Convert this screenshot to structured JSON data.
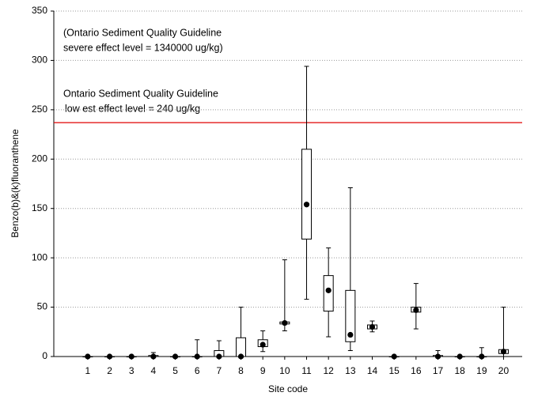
{
  "chart_data": {
    "type": "box",
    "x_label": "Site code",
    "y_label": "Benzo(b)&(k)fluoranthene",
    "categories": [
      "1",
      "2",
      "3",
      "4",
      "5",
      "6",
      "7",
      "8",
      "9",
      "10",
      "11",
      "12",
      "13",
      "14",
      "15",
      "16",
      "17",
      "18",
      "19",
      "20"
    ],
    "min": [
      0,
      0,
      0,
      0,
      0,
      0,
      0,
      0,
      5,
      26,
      58,
      20,
      6,
      25,
      0,
      28,
      0,
      0,
      0,
      0
    ],
    "q1": [
      0,
      0,
      0,
      0,
      0,
      0,
      0,
      0,
      10,
      33,
      119,
      46,
      15,
      28,
      0,
      45,
      0,
      0,
      0,
      3
    ],
    "median": [
      0,
      0,
      0,
      0,
      0,
      0,
      0,
      0,
      12,
      34,
      154,
      67,
      22,
      30,
      0,
      47,
      0,
      0,
      0,
      5
    ],
    "q3": [
      0,
      0,
      0,
      1,
      0,
      0,
      6,
      19,
      17,
      35,
      210,
      82,
      67,
      32,
      0,
      50,
      1,
      0,
      0,
      7
    ],
    "max": [
      0,
      0,
      0,
      4,
      0,
      17,
      16,
      50,
      26,
      98,
      294,
      110,
      171,
      36,
      0,
      74,
      6,
      0,
      9,
      50
    ],
    "ylim": [
      0,
      350
    ],
    "yticks": [
      0,
      50,
      100,
      150,
      200,
      250,
      300,
      350
    ],
    "grid": true,
    "reference_line": {
      "value": 237,
      "color": "#e00000"
    },
    "annotations": [
      "(Ontario Sediment Quality Guideline",
      "severe effect level = 1340000 ug/kg)",
      "Ontario Sediment Quality Guideline",
      "low est effect level = 240 ug/kg"
    ]
  }
}
